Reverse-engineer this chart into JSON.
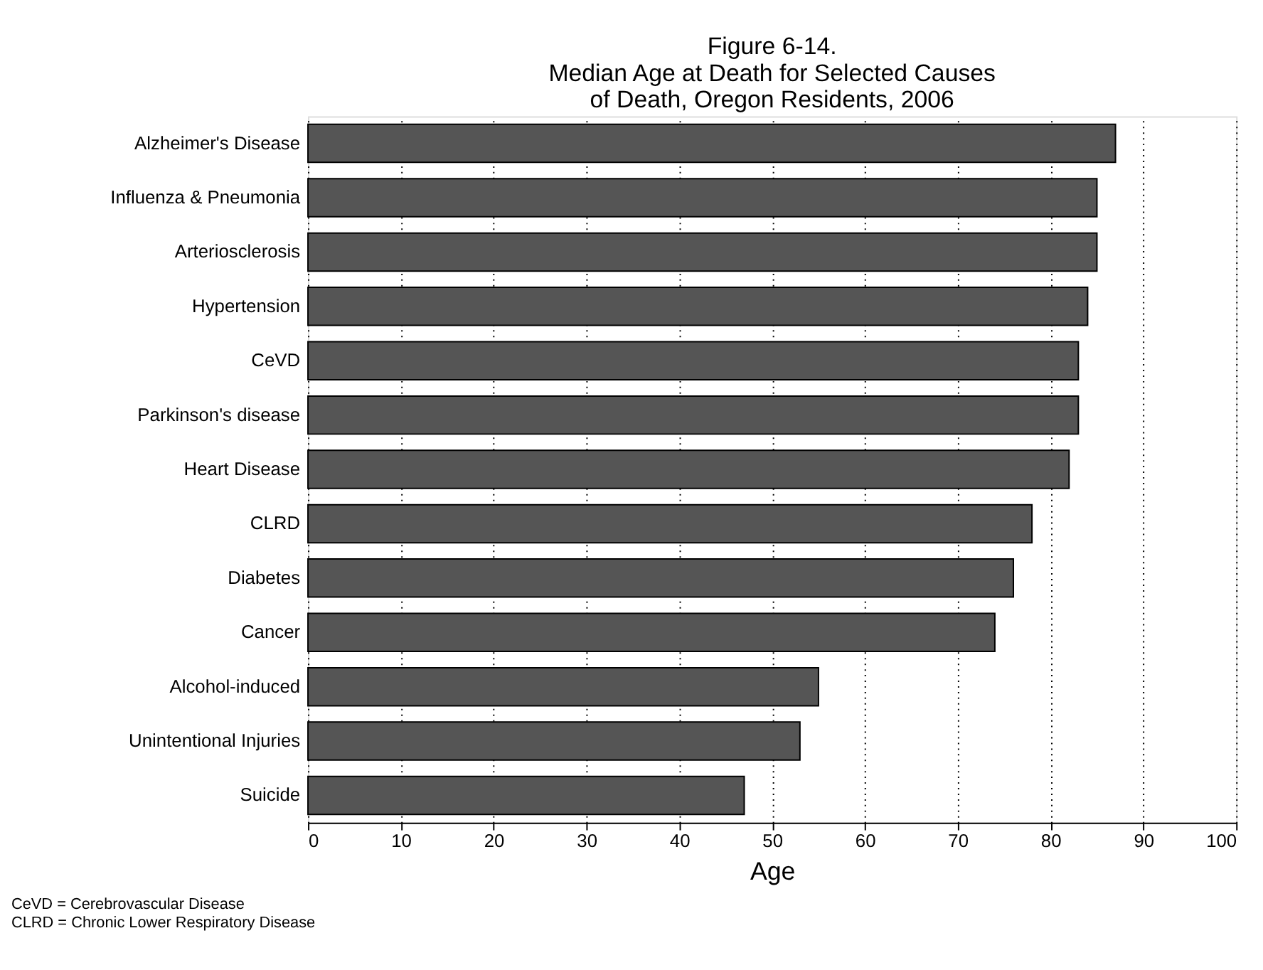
{
  "chart_data": {
    "type": "bar",
    "orientation": "horizontal",
    "title": [
      "Figure 6-14.",
      "Median Age at Death for Selected Causes",
      "of Death, Oregon Residents, 2006"
    ],
    "xlabel": "Age",
    "categories": [
      "Alzheimer's Disease",
      "Influenza & Pneumonia",
      "Arteriosclerosis",
      "Hypertension",
      "CeVD",
      "Parkinson's disease",
      "Heart Disease",
      "CLRD",
      "Diabetes",
      "Cancer",
      "Alcohol-induced",
      "Unintentional Injuries",
      "Suicide"
    ],
    "values": [
      87,
      85,
      85,
      84,
      83,
      83,
      82,
      78,
      76,
      74,
      55,
      53,
      47
    ],
    "color": "#555555",
    "xlim": [
      0,
      100
    ],
    "xticks": [
      0,
      10,
      20,
      30,
      40,
      50,
      60,
      70,
      80,
      90,
      100
    ],
    "grid": "x",
    "annotations": [
      "CeVD = Cerebrovascular Disease",
      "CLRD = Chronic Lower Respiratory Disease"
    ]
  }
}
